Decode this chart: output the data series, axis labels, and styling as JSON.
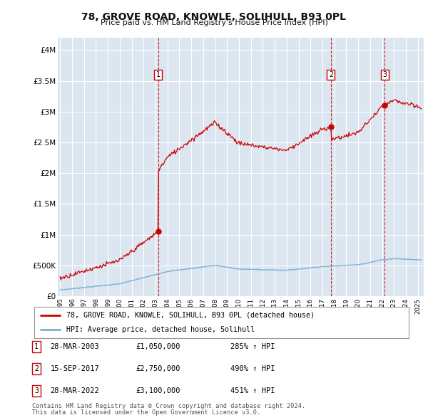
{
  "title": "78, GROVE ROAD, KNOWLE, SOLIHULL, B93 0PL",
  "subtitle": "Price paid vs. HM Land Registry's House Price Index (HPI)",
  "background_color": "#dce6f1",
  "plot_bg_color": "#dce6f1",
  "outer_bg_color": "#ffffff",
  "grid_color": "#ffffff",
  "hpi_line_color": "#7bafd4",
  "price_line_color": "#cc0000",
  "sale_marker_color": "#cc0000",
  "vline_color": "#cc0000",
  "xlim_start": 1994.8,
  "xlim_end": 2025.5,
  "ylim_min": 0,
  "ylim_max": 4200000,
  "yticks": [
    0,
    500000,
    1000000,
    1500000,
    2000000,
    2500000,
    3000000,
    3500000,
    4000000
  ],
  "ytick_labels": [
    "£0",
    "£500K",
    "£1M",
    "£1.5M",
    "£2M",
    "£2.5M",
    "£3M",
    "£3.5M",
    "£4M"
  ],
  "xticks": [
    1995,
    1996,
    1997,
    1998,
    1999,
    2000,
    2001,
    2002,
    2003,
    2004,
    2005,
    2006,
    2007,
    2008,
    2009,
    2010,
    2011,
    2012,
    2013,
    2014,
    2015,
    2016,
    2017,
    2018,
    2019,
    2020,
    2021,
    2022,
    2023,
    2024,
    2025
  ],
  "sales": [
    {
      "date": 2003.23,
      "price": 1050000,
      "label": "1"
    },
    {
      "date": 2017.71,
      "price": 2750000,
      "label": "2"
    },
    {
      "date": 2022.23,
      "price": 3100000,
      "label": "3"
    }
  ],
  "legend_line1": "78, GROVE ROAD, KNOWLE, SOLIHULL, B93 0PL (detached house)",
  "legend_line2": "HPI: Average price, detached house, Solihull",
  "table_rows": [
    {
      "num": "1",
      "date": "28-MAR-2003",
      "price": "£1,050,000",
      "pct": "285% ↑ HPI"
    },
    {
      "num": "2",
      "date": "15-SEP-2017",
      "price": "£2,750,000",
      "pct": "490% ↑ HPI"
    },
    {
      "num": "3",
      "date": "28-MAR-2022",
      "price": "£3,100,000",
      "pct": "451% ↑ HPI"
    }
  ],
  "footnote1": "Contains HM Land Registry data © Crown copyright and database right 2024.",
  "footnote2": "This data is licensed under the Open Government Licence v3.0."
}
